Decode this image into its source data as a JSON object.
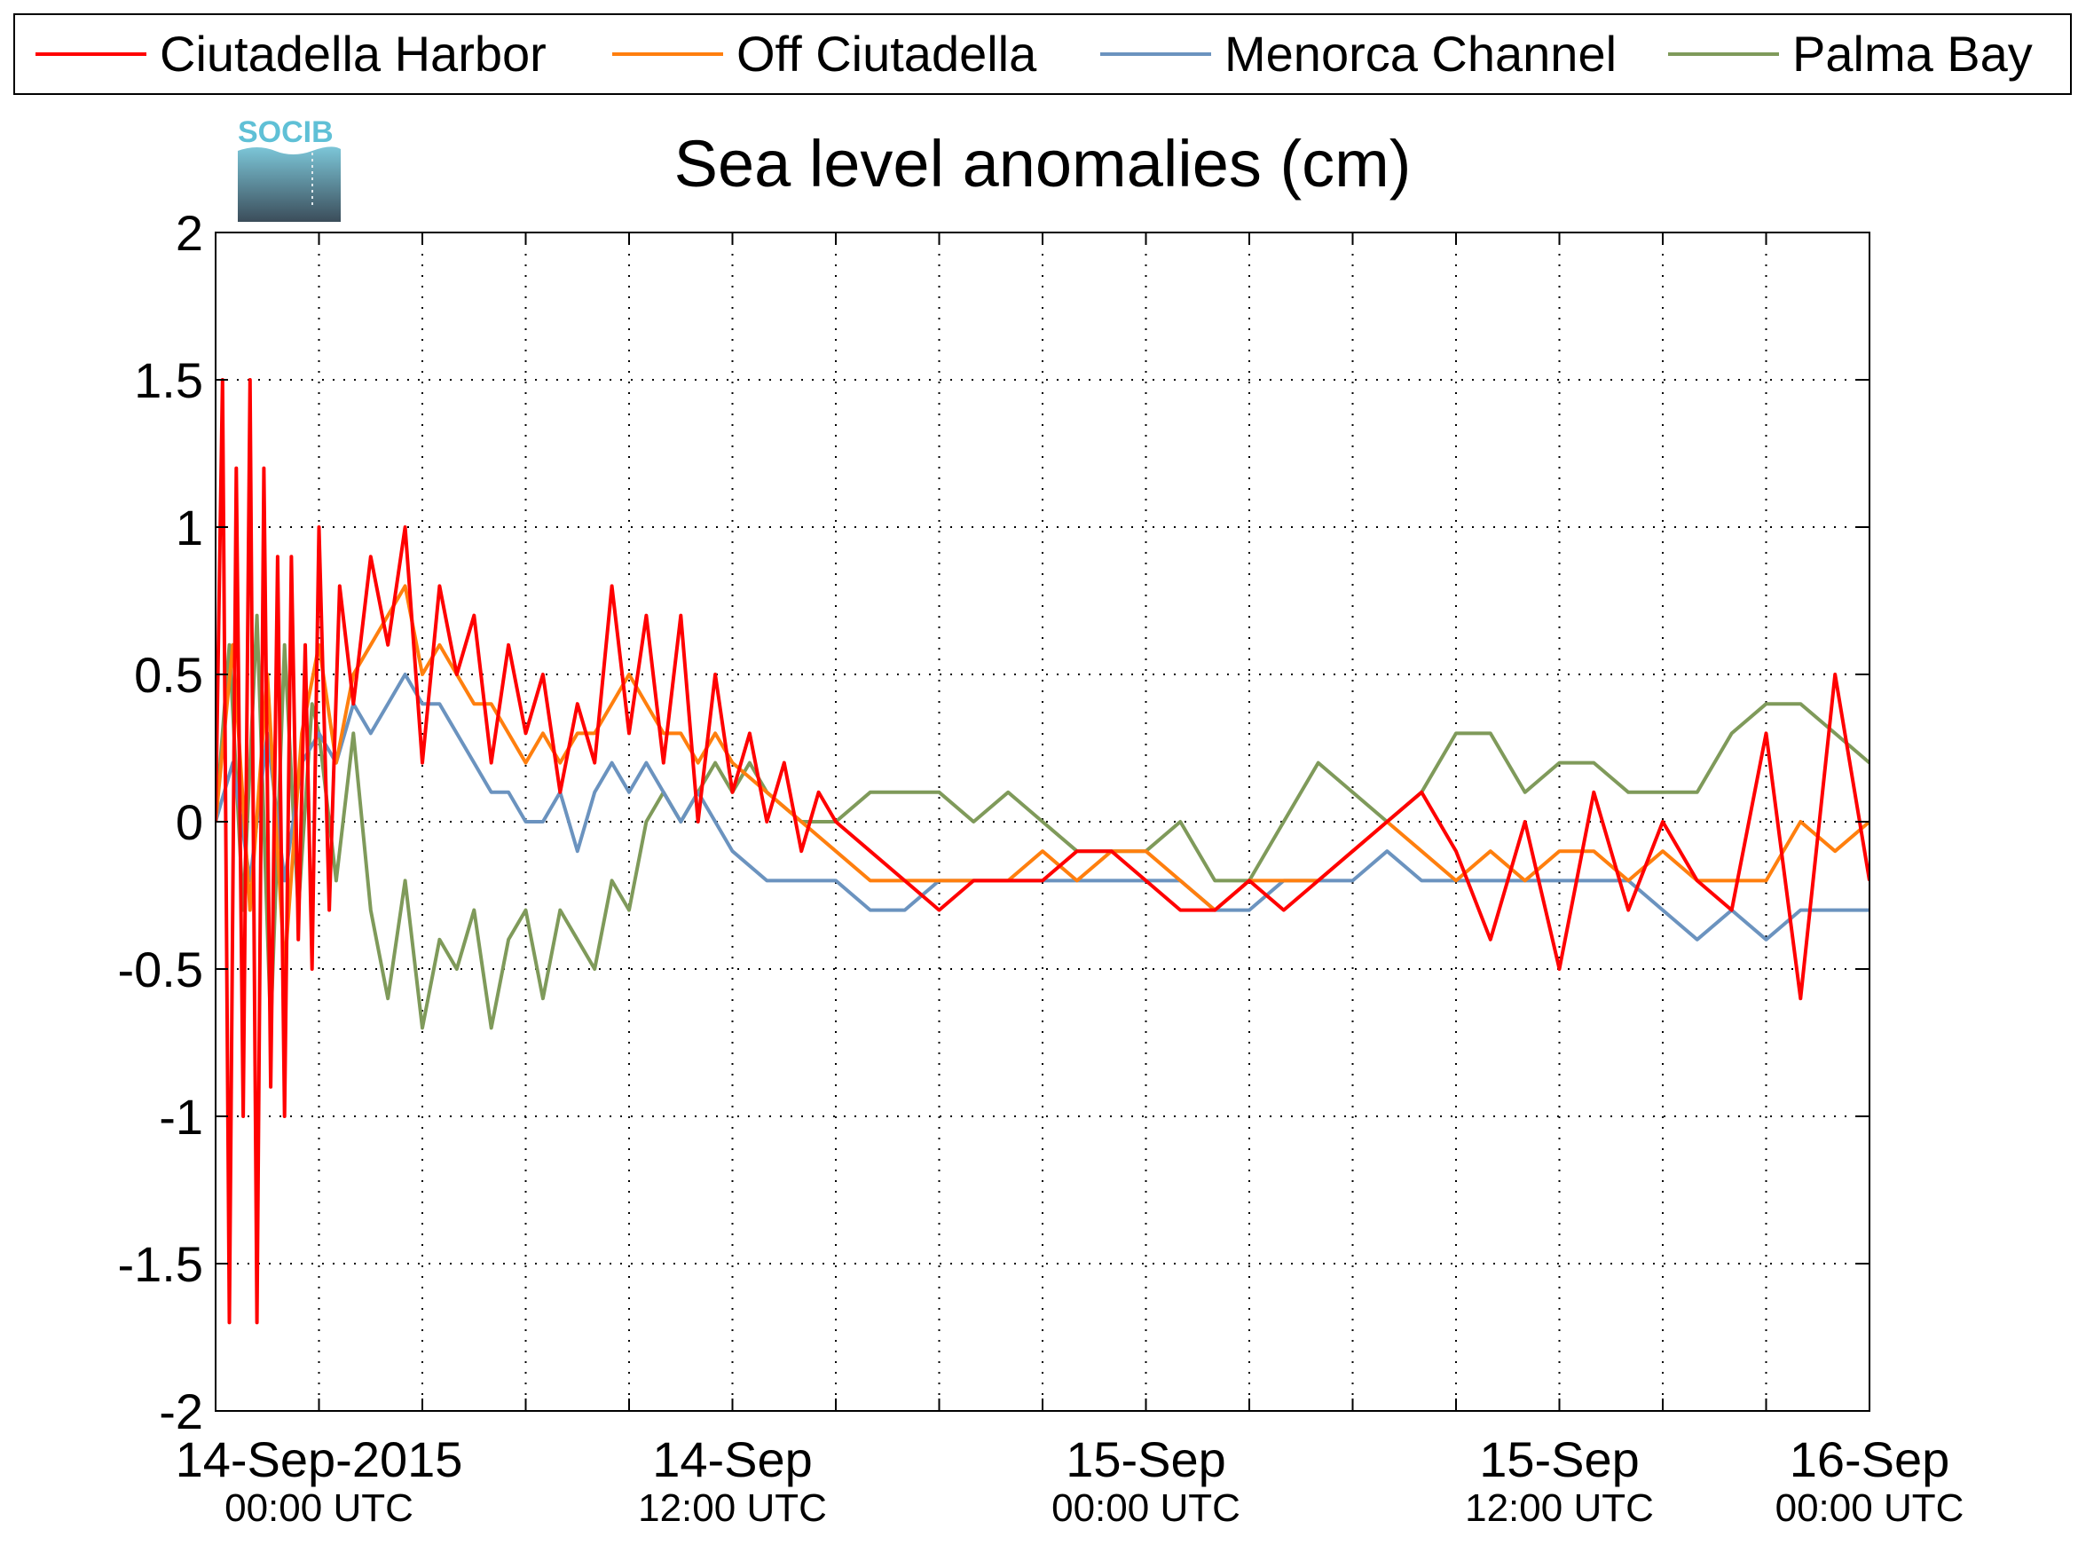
{
  "logo": {
    "text": "SOCIB",
    "colors": {
      "text": "#5fc0d6",
      "top": "#7cc6d8",
      "bottom": "#3b4d5a"
    }
  },
  "chart_data": {
    "type": "line",
    "title": "Sea level anomalies (cm)",
    "xlabel": "",
    "ylabel": "",
    "x_unit": "hours since 14-Sep-2015 00:00 UTC",
    "xlim": [
      -3,
      45
    ],
    "ylim": [
      -2,
      2
    ],
    "yticks": [
      2,
      1.5,
      1,
      0.5,
      0,
      -0.5,
      -1,
      -1.5,
      -2
    ],
    "ytick_labels": [
      "2",
      "1.5",
      "1",
      "0.5",
      "0",
      "-0.5",
      "-1",
      "-1.5",
      "-2"
    ],
    "xtick_positions": [
      -3,
      0,
      3,
      6,
      9,
      12,
      15,
      18,
      21,
      24,
      27,
      30,
      33,
      36,
      39,
      42,
      45
    ],
    "xticks_labeled": [
      {
        "x": 0,
        "line1": "14-Sep-2015",
        "line2": "00:00 UTC"
      },
      {
        "x": 12,
        "line1": "14-Sep",
        "line2": "12:00 UTC"
      },
      {
        "x": 24,
        "line1": "15-Sep",
        "line2": "00:00 UTC"
      },
      {
        "x": 36,
        "line1": "15-Sep",
        "line2": "12:00 UTC"
      },
      {
        "x": 48,
        "line1": "16-Sep",
        "line2": "00:00 UTC"
      }
    ],
    "grid": true,
    "legend_position": "top",
    "series": [
      {
        "name": "Ciutadella Harbor",
        "color": "#ff0000",
        "x": [
          -3,
          -2.8,
          -2.6,
          -2.4,
          -2.2,
          -2,
          -1.8,
          -1.6,
          -1.4,
          -1.2,
          -1,
          -0.8,
          -0.6,
          -0.4,
          -0.2,
          0,
          0.3,
          0.6,
          1,
          1.5,
          2,
          2.5,
          3,
          3.5,
          4,
          4.5,
          5,
          5.5,
          6,
          6.5,
          7,
          7.5,
          8,
          8.5,
          9,
          9.5,
          10,
          10.5,
          11,
          11.5,
          12,
          12.5,
          13,
          13.5,
          14,
          14.5,
          15,
          16,
          17,
          18,
          19,
          20,
          21,
          22,
          23,
          24,
          25,
          26,
          27,
          28,
          29,
          30,
          31,
          32,
          33,
          34,
          35,
          36,
          37,
          38,
          39,
          40,
          41,
          42,
          43,
          44,
          45
        ],
        "y": [
          0,
          1.5,
          -1.7,
          1.2,
          -1.0,
          1.5,
          -1.7,
          1.2,
          -0.9,
          0.9,
          -1.0,
          0.9,
          -0.4,
          0.6,
          -0.5,
          1.0,
          -0.3,
          0.8,
          0.4,
          0.9,
          0.6,
          1.0,
          0.2,
          0.8,
          0.5,
          0.7,
          0.2,
          0.6,
          0.3,
          0.5,
          0.1,
          0.4,
          0.2,
          0.8,
          0.3,
          0.7,
          0.2,
          0.7,
          0.0,
          0.5,
          0.1,
          0.3,
          0.0,
          0.2,
          -0.1,
          0.1,
          0.0,
          -0.1,
          -0.2,
          -0.3,
          -0.2,
          -0.2,
          -0.2,
          -0.1,
          -0.1,
          -0.2,
          -0.3,
          -0.3,
          -0.2,
          -0.3,
          -0.2,
          -0.1,
          0.0,
          0.1,
          -0.1,
          -0.4,
          0.0,
          -0.5,
          0.1,
          -0.3,
          0.0,
          -0.2,
          -0.3,
          0.3,
          -0.6,
          0.5,
          -0.2
        ]
      },
      {
        "name": "Off Ciutadella",
        "color": "#ff7f0e",
        "x": [
          -3,
          -2.5,
          -2,
          -1.5,
          -1,
          -0.5,
          0,
          0.5,
          1,
          1.5,
          2,
          2.5,
          3,
          3.5,
          4,
          4.5,
          5,
          5.5,
          6,
          6.5,
          7,
          7.5,
          8,
          8.5,
          9,
          9.5,
          10,
          10.5,
          11,
          11.5,
          12,
          13,
          14,
          15,
          16,
          17,
          18,
          19,
          20,
          21,
          22,
          23,
          24,
          25,
          26,
          27,
          28,
          29,
          30,
          31,
          32,
          33,
          34,
          35,
          36,
          37,
          38,
          39,
          40,
          41,
          42,
          43,
          44,
          45
        ],
        "y": [
          0,
          0.6,
          -0.3,
          0.5,
          -0.5,
          0.3,
          0.6,
          0.2,
          0.5,
          0.6,
          0.7,
          0.8,
          0.5,
          0.6,
          0.5,
          0.4,
          0.4,
          0.3,
          0.2,
          0.3,
          0.2,
          0.3,
          0.3,
          0.4,
          0.5,
          0.4,
          0.3,
          0.3,
          0.2,
          0.3,
          0.2,
          0.1,
          0.0,
          -0.1,
          -0.2,
          -0.2,
          -0.2,
          -0.2,
          -0.2,
          -0.1,
          -0.2,
          -0.1,
          -0.1,
          -0.2,
          -0.3,
          -0.2,
          -0.2,
          -0.2,
          -0.1,
          0.0,
          -0.1,
          -0.2,
          -0.1,
          -0.2,
          -0.1,
          -0.1,
          -0.2,
          -0.1,
          -0.2,
          -0.2,
          -0.2,
          0.0,
          -0.1,
          0.0
        ]
      },
      {
        "name": "Menorca Channel",
        "color": "#6b93bf",
        "x": [
          -3,
          -2.5,
          -2,
          -1.5,
          -1,
          -0.5,
          0,
          0.5,
          1,
          1.5,
          2,
          2.5,
          3,
          3.5,
          4,
          4.5,
          5,
          5.5,
          6,
          6.5,
          7,
          7.5,
          8,
          8.5,
          9,
          9.5,
          10,
          10.5,
          11,
          11.5,
          12,
          13,
          14,
          15,
          16,
          17,
          18,
          19,
          20,
          21,
          22,
          23,
          24,
          25,
          26,
          27,
          28,
          29,
          30,
          31,
          32,
          33,
          34,
          35,
          36,
          37,
          38,
          39,
          40,
          41,
          42,
          43,
          44,
          45
        ],
        "y": [
          0,
          0.2,
          -0.2,
          0.3,
          -0.2,
          0.2,
          0.3,
          0.2,
          0.4,
          0.3,
          0.4,
          0.5,
          0.4,
          0.4,
          0.3,
          0.2,
          0.1,
          0.1,
          0.0,
          0.0,
          0.1,
          -0.1,
          0.1,
          0.2,
          0.1,
          0.2,
          0.1,
          0.0,
          0.1,
          0.0,
          -0.1,
          -0.2,
          -0.2,
          -0.2,
          -0.3,
          -0.3,
          -0.2,
          -0.2,
          -0.2,
          -0.2,
          -0.2,
          -0.2,
          -0.2,
          -0.2,
          -0.3,
          -0.3,
          -0.2,
          -0.2,
          -0.2,
          -0.1,
          -0.2,
          -0.2,
          -0.2,
          -0.2,
          -0.2,
          -0.2,
          -0.2,
          -0.3,
          -0.4,
          -0.3,
          -0.4,
          -0.3,
          -0.3,
          -0.3
        ]
      },
      {
        "name": "Palma Bay",
        "color": "#7f9a5a",
        "x": [
          -3,
          -2.6,
          -2.2,
          -1.8,
          -1.4,
          -1,
          -0.6,
          -0.2,
          0,
          0.5,
          1,
          1.5,
          2,
          2.5,
          3,
          3.5,
          4,
          4.5,
          5,
          5.5,
          6,
          6.5,
          7,
          7.5,
          8,
          8.5,
          9,
          9.5,
          10,
          10.5,
          11,
          11.5,
          12,
          12.5,
          13,
          14,
          15,
          16,
          17,
          18,
          19,
          20,
          21,
          22,
          23,
          24,
          25,
          26,
          27,
          28,
          29,
          30,
          31,
          32,
          33,
          34,
          35,
          36,
          37,
          38,
          39,
          40,
          41,
          42,
          43,
          44,
          45
        ],
        "y": [
          0,
          0.6,
          -0.3,
          0.7,
          -0.7,
          0.6,
          -0.3,
          0.4,
          0.3,
          -0.2,
          0.3,
          -0.3,
          -0.6,
          -0.2,
          -0.7,
          -0.4,
          -0.5,
          -0.3,
          -0.7,
          -0.4,
          -0.3,
          -0.6,
          -0.3,
          -0.4,
          -0.5,
          -0.2,
          -0.3,
          0.0,
          0.1,
          0.0,
          0.1,
          0.2,
          0.1,
          0.2,
          0.1,
          0.0,
          0.0,
          0.1,
          0.1,
          0.1,
          0.0,
          0.1,
          0.0,
          -0.1,
          -0.1,
          -0.1,
          0.0,
          -0.2,
          -0.2,
          0.0,
          0.2,
          0.1,
          0.0,
          0.1,
          0.3,
          0.3,
          0.1,
          0.2,
          0.2,
          0.1,
          0.1,
          0.1,
          0.3,
          0.4,
          0.4,
          0.3,
          0.2
        ]
      }
    ]
  }
}
